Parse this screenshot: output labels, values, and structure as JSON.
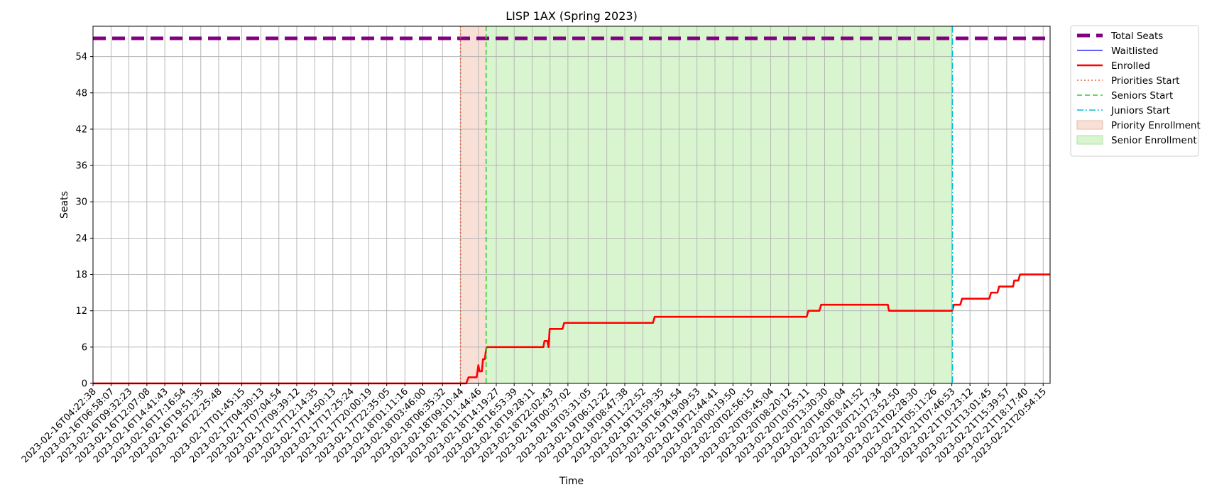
{
  "chart_data": {
    "type": "line",
    "title": "LISP 1AX (Spring 2023)",
    "xlabel": "Time",
    "ylabel": "Seats",
    "ylim": [
      0,
      59
    ],
    "yticks": [
      0,
      6,
      12,
      18,
      24,
      30,
      36,
      42,
      48,
      54
    ],
    "grid": true,
    "legend_position": "outside-top-right",
    "x_start": "2023-02-16T04:22:38",
    "x_end": "2023-02-21T21:54:00",
    "xticks": [
      "2023-02-16T04:22:38",
      "2023-02-16T06:58:07",
      "2023-02-16T09:32:23",
      "2023-02-16T12:07:08",
      "2023-02-16T14:41:43",
      "2023-02-16T17:16:54",
      "2023-02-16T19:51:35",
      "2023-02-16T22:25:48",
      "2023-02-17T01:45:15",
      "2023-02-17T04:30:13",
      "2023-02-17T07:04:54",
      "2023-02-17T09:39:12",
      "2023-02-17T12:14:35",
      "2023-02-17T14:50:13",
      "2023-02-17T17:25:24",
      "2023-02-17T20:00:19",
      "2023-02-17T22:35:05",
      "2023-02-18T01:11:16",
      "2023-02-18T03:46:00",
      "2023-02-18T06:35:32",
      "2023-02-18T09:10:44",
      "2023-02-18T11:44:46",
      "2023-02-18T14:19:27",
      "2023-02-18T16:53:39",
      "2023-02-18T19:28:11",
      "2023-02-18T22:02:43",
      "2023-02-19T00:37:02",
      "2023-02-19T03:31:05",
      "2023-02-19T06:12:22",
      "2023-02-19T08:47:38",
      "2023-02-19T11:22:52",
      "2023-02-19T13:59:35",
      "2023-02-19T16:34:54",
      "2023-02-19T19:09:53",
      "2023-02-19T21:44:41",
      "2023-02-20T00:19:50",
      "2023-02-20T02:56:15",
      "2023-02-20T05:45:04",
      "2023-02-20T08:20:12",
      "2023-02-20T10:55:11",
      "2023-02-20T13:30:30",
      "2023-02-20T16:06:04",
      "2023-02-20T18:41:52",
      "2023-02-20T21:17:34",
      "2023-02-20T23:52:50",
      "2023-02-21T02:28:30",
      "2023-02-21T05:11:26",
      "2023-02-21T07:46:53",
      "2023-02-21T10:23:12",
      "2023-02-21T13:01:45",
      "2023-02-21T15:39:57",
      "2023-02-21T18:17:40",
      "2023-02-21T20:54:15"
    ],
    "series": [
      {
        "name": "Total Seats",
        "color": "#800080",
        "style": "dashed-thick",
        "values": [
          [
            "2023-02-16T04:22:38",
            57
          ],
          [
            "2023-02-21T21:54:00",
            57
          ]
        ]
      },
      {
        "name": "Waitlisted",
        "color": "#0000ff",
        "style": "solid-thin",
        "values": []
      },
      {
        "name": "Enrolled",
        "color": "#ff0000",
        "style": "solid",
        "values": [
          [
            "2023-02-16T04:22:38",
            0
          ],
          [
            "2023-02-18T10:00:00",
            0
          ],
          [
            "2023-02-18T10:20:00",
            1
          ],
          [
            "2023-02-18T11:30:00",
            1
          ],
          [
            "2023-02-18T11:45:00",
            3
          ],
          [
            "2023-02-18T11:55:00",
            2
          ],
          [
            "2023-02-18T12:15:00",
            2
          ],
          [
            "2023-02-18T12:25:00",
            4
          ],
          [
            "2023-02-18T12:40:00",
            4
          ],
          [
            "2023-02-18T12:55:00",
            6
          ],
          [
            "2023-02-18T21:05:00",
            6
          ],
          [
            "2023-02-18T21:15:00",
            7
          ],
          [
            "2023-02-18T21:40:00",
            7
          ],
          [
            "2023-02-18T21:50:00",
            6
          ],
          [
            "2023-02-18T22:00:00",
            9
          ],
          [
            "2023-02-18T23:50:00",
            9
          ],
          [
            "2023-02-19T00:05:00",
            10
          ],
          [
            "2023-02-19T12:50:00",
            10
          ],
          [
            "2023-02-19T13:05:00",
            11
          ],
          [
            "2023-02-20T10:55:00",
            11
          ],
          [
            "2023-02-20T11:10:00",
            12
          ],
          [
            "2023-02-20T12:45:00",
            12
          ],
          [
            "2023-02-20T13:00:00",
            13
          ],
          [
            "2023-02-20T22:35:00",
            13
          ],
          [
            "2023-02-20T22:45:00",
            12
          ],
          [
            "2023-02-21T07:50:00",
            12
          ],
          [
            "2023-02-21T08:05:00",
            13
          ],
          [
            "2023-02-21T09:00:00",
            13
          ],
          [
            "2023-02-21T09:15:00",
            14
          ],
          [
            "2023-02-21T13:10:00",
            14
          ],
          [
            "2023-02-21T13:25:00",
            15
          ],
          [
            "2023-02-21T14:20:00",
            15
          ],
          [
            "2023-02-21T14:35:00",
            16
          ],
          [
            "2023-02-21T16:35:00",
            16
          ],
          [
            "2023-02-21T16:45:00",
            17
          ],
          [
            "2023-02-21T17:20:00",
            17
          ],
          [
            "2023-02-21T17:35:00",
            18
          ],
          [
            "2023-02-21T21:54:00",
            18
          ]
        ]
      }
    ],
    "vlines": [
      {
        "name": "Priorities Start",
        "x": "2023-02-18T09:10:44",
        "color": "#e8643c",
        "style": "dotted"
      },
      {
        "name": "Seniors Start",
        "x": "2023-02-18T12:52:00",
        "color": "#33cc33",
        "style": "dashed"
      },
      {
        "name": "Juniors Start",
        "x": "2023-02-21T07:52:00",
        "color": "#00bfd8",
        "style": "dashdot"
      }
    ],
    "spans": [
      {
        "name": "Priority Enrollment",
        "x0": "2023-02-18T09:10:44",
        "x1": "2023-02-18T12:52:00",
        "color": "#f8e0d6"
      },
      {
        "name": "Senior Enrollment",
        "x0": "2023-02-18T12:52:00",
        "x1": "2023-02-21T07:52:00",
        "color": "#d9f5d0"
      }
    ],
    "legend": [
      {
        "label": "Total Seats",
        "kind": "line",
        "color": "#800080",
        "style": "dashed-thick"
      },
      {
        "label": "Waitlisted",
        "kind": "line",
        "color": "#0000ff",
        "style": "solid-thin"
      },
      {
        "label": "Enrolled",
        "kind": "line",
        "color": "#ff0000",
        "style": "solid"
      },
      {
        "label": "Priorities Start",
        "kind": "line",
        "color": "#e8643c",
        "style": "dotted"
      },
      {
        "label": "Seniors Start",
        "kind": "line",
        "color": "#33cc33",
        "style": "dashed"
      },
      {
        "label": "Juniors Start",
        "kind": "line",
        "color": "#00bfd8",
        "style": "dashdot"
      },
      {
        "label": "Priority Enrollment",
        "kind": "patch",
        "color": "#f8e0d6",
        "edge": "#eab8a8"
      },
      {
        "label": "Senior Enrollment",
        "kind": "patch",
        "color": "#d9f5d0",
        "edge": "#aee3a0"
      }
    ]
  }
}
